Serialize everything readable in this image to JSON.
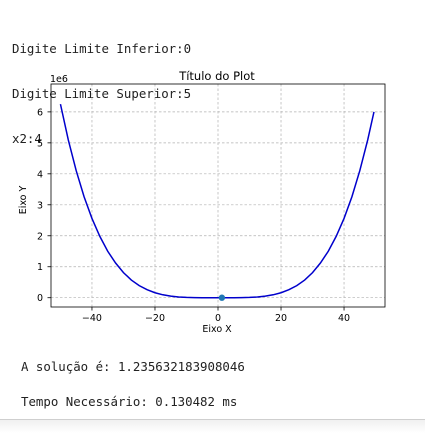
{
  "console": {
    "lines": [
      "Digite Limite Inferior:0",
      "Digite Limite Superior:5",
      "x2:4"
    ]
  },
  "chart_data": {
    "type": "line",
    "title": "Título do Plot",
    "xlabel": "Eixo X",
    "ylabel": "Eixo Y",
    "y_offset_label": "1e6",
    "xlim": [
      -53,
      53
    ],
    "ylim": [
      -0.3,
      6.9
    ],
    "xticks": [
      -40,
      -20,
      0,
      20,
      40
    ],
    "xtick_labels": [
      "−40",
      "−20",
      "0",
      "20",
      "40"
    ],
    "yticks": [
      0,
      1,
      2,
      3,
      4,
      5,
      6
    ],
    "ytick_labels": [
      "0",
      "1",
      "2",
      "3",
      "4",
      "5",
      "6"
    ],
    "grid": true,
    "series": [
      {
        "color": "#0000cc",
        "formula": "y = x^4 (scaled 1e6)",
        "x": [
          -50,
          -47.5,
          -45,
          -42.5,
          -40,
          -37.5,
          -35,
          -32.5,
          -30,
          -27.5,
          -25,
          -22.5,
          -20,
          -17.5,
          -15,
          -12.5,
          -10,
          -7.5,
          -5,
          -2.5,
          0,
          2.5,
          5,
          7.5,
          10,
          12.5,
          15,
          17.5,
          20,
          22.5,
          25,
          27.5,
          30,
          32.5,
          35,
          37.5,
          40,
          42.5,
          45,
          47.5,
          49.5
        ],
        "y": [
          6.25,
          5.09,
          4.1,
          3.26,
          2.56,
          1.98,
          1.5,
          1.12,
          0.81,
          0.57,
          0.39,
          0.26,
          0.16,
          0.094,
          0.051,
          0.024,
          0.01,
          0.003,
          0.0006,
          4e-05,
          0,
          4e-05,
          0.0006,
          0.003,
          0.01,
          0.024,
          0.051,
          0.094,
          0.16,
          0.26,
          0.39,
          0.57,
          0.81,
          1.12,
          1.5,
          1.98,
          2.56,
          3.26,
          4.1,
          5.09,
          6.0
        ]
      }
    ],
    "points": [
      {
        "x": 1.2356,
        "y": 0,
        "color": "#1f77b4"
      }
    ]
  },
  "results": {
    "solution": "A solução é: 1.235632183908046",
    "time": "Tempo Necessário: 0.130482 ms"
  }
}
